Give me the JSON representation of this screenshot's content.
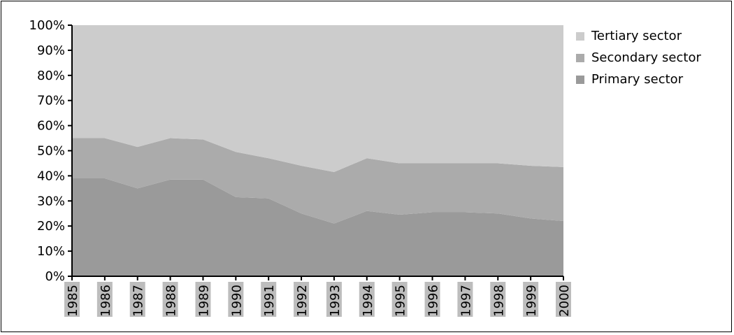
{
  "chart_data": {
    "type": "area",
    "stacked": true,
    "normalized_percent": true,
    "x": [
      "1985",
      "1986",
      "1987",
      "1988",
      "1989",
      "1990",
      "1991",
      "1992",
      "1993",
      "1994",
      "1995",
      "1996",
      "1997",
      "1998",
      "1999",
      "2000"
    ],
    "series": [
      {
        "name": "Primary sector",
        "color": "#9a9a9a",
        "values": [
          39,
          39,
          35,
          38.5,
          38.5,
          31.5,
          31,
          25,
          21,
          26,
          24.5,
          25.5,
          25.5,
          25,
          23,
          22
        ]
      },
      {
        "name": "Secondary sector",
        "color": "#ababab",
        "values": [
          16,
          16,
          16.5,
          16.5,
          16,
          18,
          16,
          19,
          20.5,
          21,
          20.5,
          19.5,
          19.5,
          20,
          21,
          21.5
        ]
      },
      {
        "name": "Tertiary sector",
        "color": "#cccccc",
        "values": [
          45,
          45,
          48.5,
          45,
          45.5,
          50.5,
          53,
          56,
          58.5,
          53,
          55,
          55,
          55,
          55,
          56,
          56.5
        ]
      }
    ],
    "ylim": [
      0,
      100
    ],
    "y_ticks": [
      "0%",
      "10%",
      "20%",
      "30%",
      "40%",
      "50%",
      "60%",
      "70%",
      "80%",
      "90%",
      "100%"
    ],
    "legend_position": "right",
    "grid": false
  }
}
